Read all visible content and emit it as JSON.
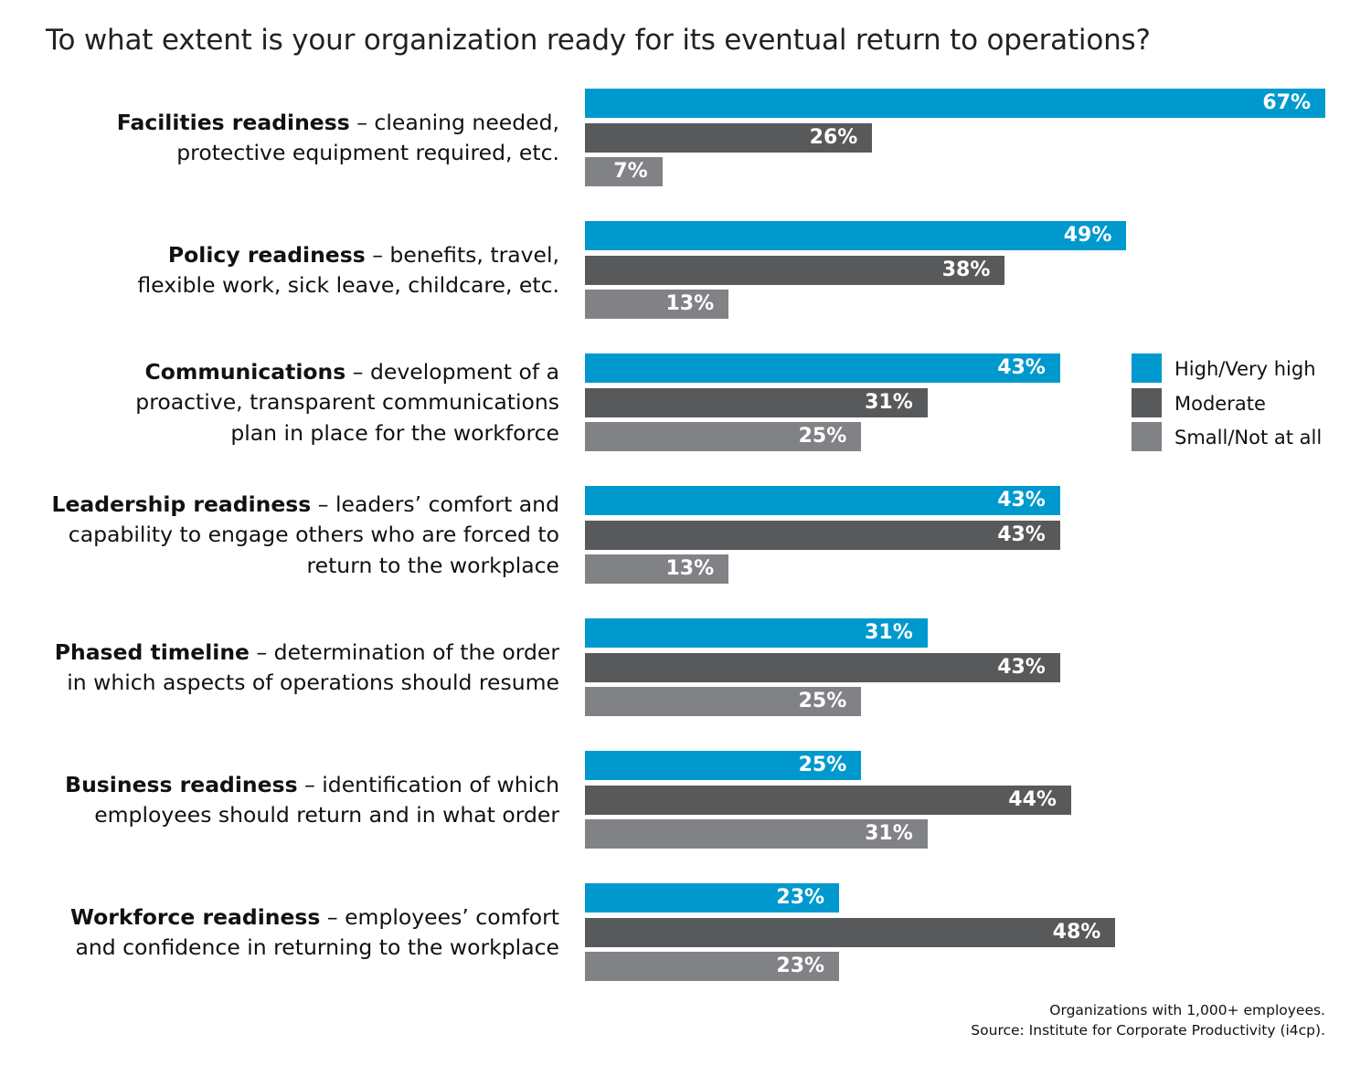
{
  "chart_data": {
    "type": "bar",
    "orientation": "horizontal",
    "title": "To what extent is your organization ready for its eventual return to operations?",
    "xlabel": "",
    "ylabel": "",
    "xlim": [
      0,
      67
    ],
    "grid": false,
    "legend_placement": "right",
    "categories": [
      {
        "bold": "Facilities readiness",
        "rest": " – cleaning needed, protective equipment required, etc.",
        "lines": [
          "<b>Facilities readiness</b> – cleaning needed,",
          "protective equipment required, etc."
        ]
      },
      {
        "bold": "Policy readiness",
        "rest": " – benefits, travel, flexible work, sick leave, childcare, etc.",
        "lines": [
          "<b>Policy readiness</b> – benefits, travel,",
          "flexible work, sick leave, childcare, etc."
        ]
      },
      {
        "bold": "Communications",
        "rest": " – development of a proactive, transparent communications plan in place for the workforce",
        "lines": [
          "<b>Communications</b> – development of a",
          "proactive, transparent communications",
          "plan in place for the workforce"
        ]
      },
      {
        "bold": "Leadership readiness",
        "rest": " – leaders’ comfort and capability to engage others who are forced to return to the workplace",
        "lines": [
          "<b>Leadership readiness</b> – leaders’ comfort and",
          "capability to engage others who are forced to",
          "return to the workplace"
        ]
      },
      {
        "bold": "Phased timeline",
        "rest": " – determination of the order in which aspects of operations should resume",
        "lines": [
          "<b>Phased timeline</b> – determination of the order",
          "in which aspects of operations should resume"
        ]
      },
      {
        "bold": "Business readiness",
        "rest": " – identification of which employees should return and in what order",
        "lines": [
          "<b>Business readiness</b> – identification of which",
          "employees should return and in what order"
        ]
      },
      {
        "bold": "Workforce readiness",
        "rest": " – employees’ comfort and confidence in returning to the workplace",
        "lines": [
          "<b>Workforce readiness</b> – employees’ comfort",
          "and confidence in returning to the workplace"
        ]
      }
    ],
    "series": [
      {
        "name": "High/Very high",
        "color": "#0099cd",
        "values": [
          67,
          49,
          43,
          43,
          31,
          25,
          23
        ]
      },
      {
        "name": "Moderate",
        "color": "#58595b",
        "values": [
          26,
          38,
          31,
          43,
          43,
          44,
          48
        ]
      },
      {
        "name": "Small/Not at all",
        "color": "#808285",
        "values": [
          7,
          13,
          25,
          13,
          25,
          31,
          23
        ]
      }
    ],
    "value_suffix": "%",
    "notes": [
      "Organizations with 1,000+ employees.",
      "Source: Institute for Corporate Productivity (i4cp)."
    ]
  }
}
